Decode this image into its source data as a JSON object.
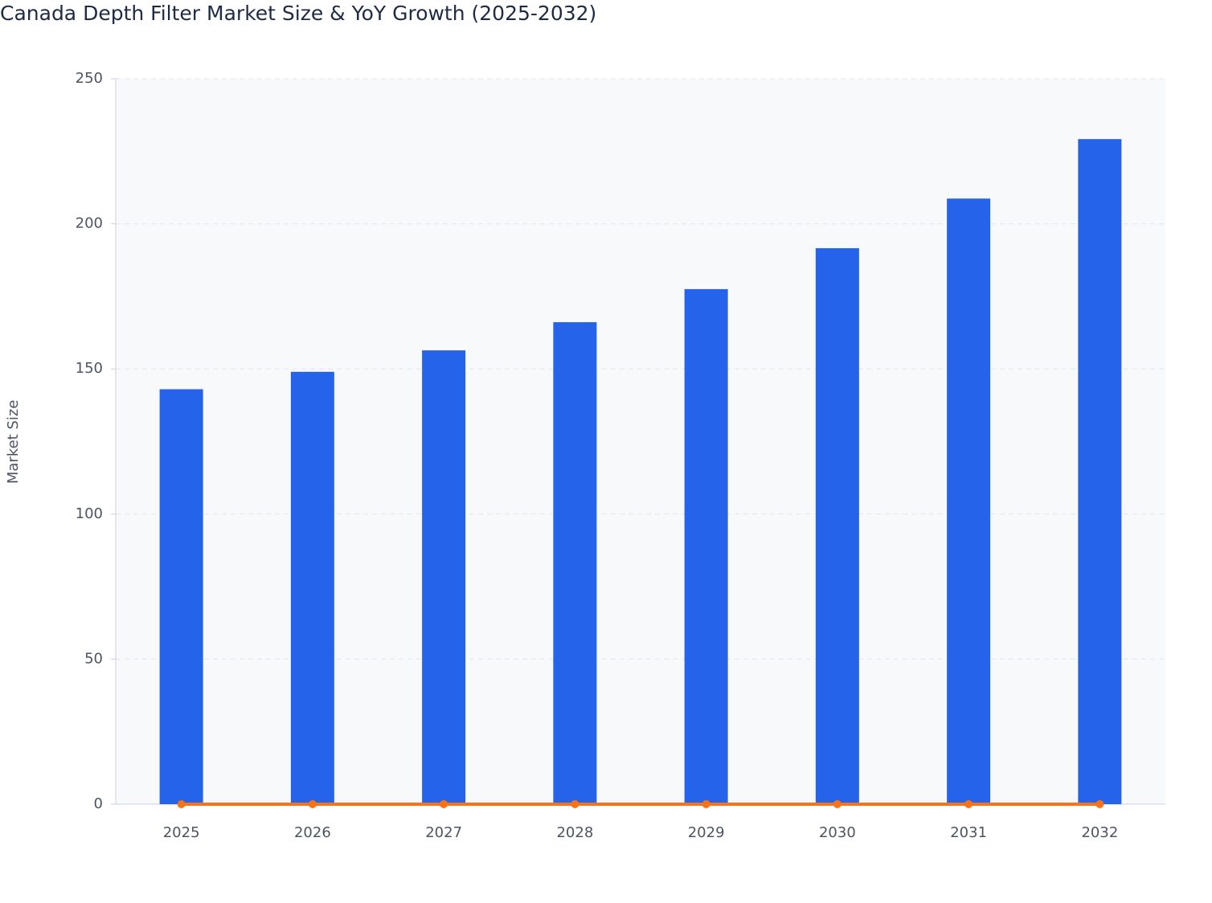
{
  "chart_data": {
    "type": "bar",
    "title": "Canada Depth Filter Market Size & YoY Growth (2025-2032)",
    "y_label": "Market Size",
    "categories": [
      "2025",
      "2026",
      "2027",
      "2028",
      "2029",
      "2030",
      "2031",
      "2032"
    ],
    "series": [
      {
        "type": "bar",
        "color": "#2563eb",
        "values": [
          143,
          149,
          156.4,
          166.1,
          177.5,
          191.6,
          208.7,
          229.2
        ]
      },
      {
        "type": "line",
        "color": "#f97316",
        "values": [
          0,
          0,
          0,
          0,
          0,
          0,
          0,
          0
        ]
      }
    ],
    "ylim": [
      0,
      250
    ],
    "yticks": [
      0,
      50,
      100,
      150,
      200,
      250
    ],
    "grid": true
  }
}
